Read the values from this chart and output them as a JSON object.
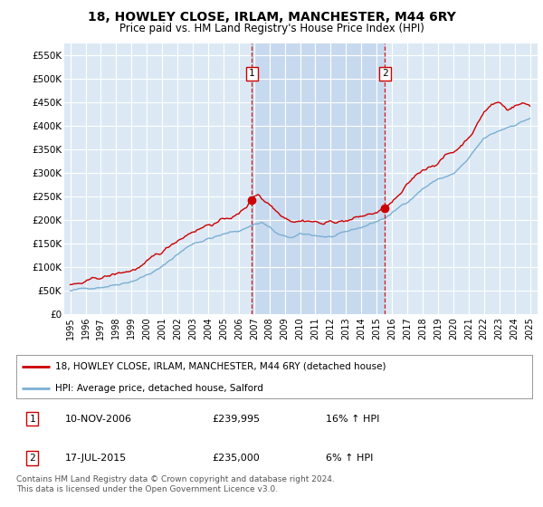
{
  "title_line1": "18, HOWLEY CLOSE, IRLAM, MANCHESTER, M44 6RY",
  "title_line2": "Price paid vs. HM Land Registry's House Price Index (HPI)",
  "ylim": [
    0,
    575000
  ],
  "yticks": [
    0,
    50000,
    100000,
    150000,
    200000,
    250000,
    300000,
    350000,
    400000,
    450000,
    500000,
    550000
  ],
  "ytick_labels": [
    "£0",
    "£50K",
    "£100K",
    "£150K",
    "£200K",
    "£250K",
    "£300K",
    "£350K",
    "£400K",
    "£450K",
    "£500K",
    "£550K"
  ],
  "plot_bg_color": "#dce9f5",
  "shade_color": "#c5d8ee",
  "grid_color": "#ffffff",
  "sale1_year": 2006.86,
  "sale1_price": 239995,
  "sale2_year": 2015.54,
  "sale2_price": 235000,
  "legend_label_red": "18, HOWLEY CLOSE, IRLAM, MANCHESTER, M44 6RY (detached house)",
  "legend_label_blue": "HPI: Average price, detached house, Salford",
  "footer": "Contains HM Land Registry data © Crown copyright and database right 2024.\nThis data is licensed under the Open Government Licence v3.0.",
  "table_row1": [
    "1",
    "10-NOV-2006",
    "£239,995",
    "16% ↑ HPI"
  ],
  "table_row2": [
    "2",
    "17-JUL-2015",
    "£235,000",
    "6% ↑ HPI"
  ],
  "red_color": "#cc0000",
  "blue_color": "#7bafd4",
  "x_start_year": 1995,
  "x_end_year": 2025
}
